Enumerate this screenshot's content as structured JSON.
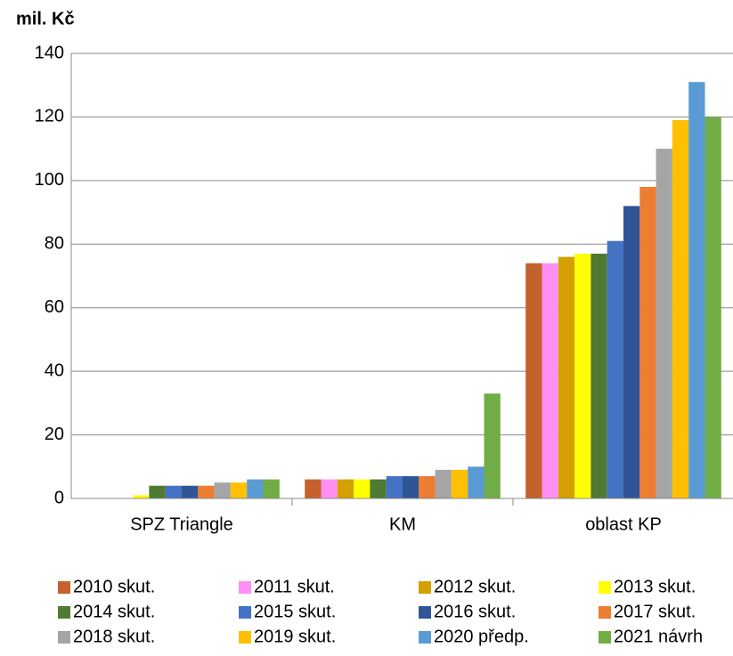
{
  "chart_data": {
    "type": "bar",
    "title": "mil. Kč",
    "categories": [
      "SPZ Triangle",
      "KM",
      "oblast KP"
    ],
    "series": [
      {
        "name": "2010 skut.",
        "color": "#c5612c",
        "values": [
          0,
          6,
          74
        ]
      },
      {
        "name": "2011 skut.",
        "color": "#ff8ff2",
        "values": [
          0,
          6,
          74
        ]
      },
      {
        "name": "2012 skut.",
        "color": "#d4a000",
        "values": [
          0,
          6,
          76
        ]
      },
      {
        "name": "2013 skut.",
        "color": "#ffff00",
        "values": [
          1,
          6,
          77
        ]
      },
      {
        "name": "2014 skut.",
        "color": "#4e7a32",
        "values": [
          4,
          6,
          77
        ]
      },
      {
        "name": "2015 skut.",
        "color": "#4472c4",
        "values": [
          4,
          7,
          81
        ]
      },
      {
        "name": "2016 skut.",
        "color": "#2f5597",
        "values": [
          4,
          7,
          92
        ]
      },
      {
        "name": "2017 skut.",
        "color": "#ed7d31",
        "values": [
          4,
          7,
          98
        ]
      },
      {
        "name": "2018 skut.",
        "color": "#a5a5a5",
        "values": [
          5,
          9,
          110
        ]
      },
      {
        "name": "2019 skut.",
        "color": "#ffc000",
        "values": [
          5,
          9,
          119
        ]
      },
      {
        "name": "2020 předp.",
        "color": "#5b9bd5",
        "values": [
          6,
          10,
          131
        ]
      },
      {
        "name": "2021 návrh",
        "color": "#70ad47",
        "values": [
          6,
          33,
          120
        ]
      }
    ],
    "ylim": [
      0,
      140
    ],
    "yticks": [
      0,
      20,
      40,
      60,
      80,
      100,
      120,
      140
    ],
    "grid": true,
    "legend": "bottom"
  }
}
